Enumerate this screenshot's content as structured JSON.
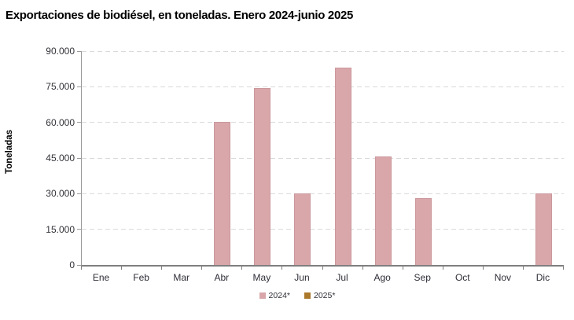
{
  "chart_data": {
    "type": "bar",
    "title": "Exportaciones de biodiésel, en toneladas. Enero 2024-junio 2025",
    "ylabel": "Toneladas",
    "xlabel": "",
    "categories": [
      "Ene",
      "Feb",
      "Mar",
      "Abr",
      "May",
      "Jun",
      "Jul",
      "Ago",
      "Sep",
      "Oct",
      "Nov",
      "Dic"
    ],
    "series": [
      {
        "name": "2024*",
        "color": "#d9a7aa",
        "border_color": "#cb989c",
        "values": [
          0,
          0,
          0,
          60300,
          74400,
          30200,
          83000,
          45800,
          28000,
          0,
          0,
          30100
        ]
      },
      {
        "name": "2025*",
        "color": "#ab792c",
        "border_color": "#8f6424",
        "values": [
          0,
          0,
          0,
          0,
          0,
          0,
          null,
          null,
          null,
          null,
          null,
          null
        ]
      }
    ],
    "ylim": [
      0,
      90000
    ],
    "ytick_step": 15000,
    "ytick_labels": [
      "0",
      "15.000",
      "30.000",
      "45.000",
      "60.000",
      "75.000",
      "90.000"
    ],
    "grid": "horizontal-dashed",
    "legend_position": "bottom-center"
  },
  "colors": {
    "gridline": "#dadada",
    "axis": "#7f7f7f",
    "tick_text": "#33333a"
  }
}
